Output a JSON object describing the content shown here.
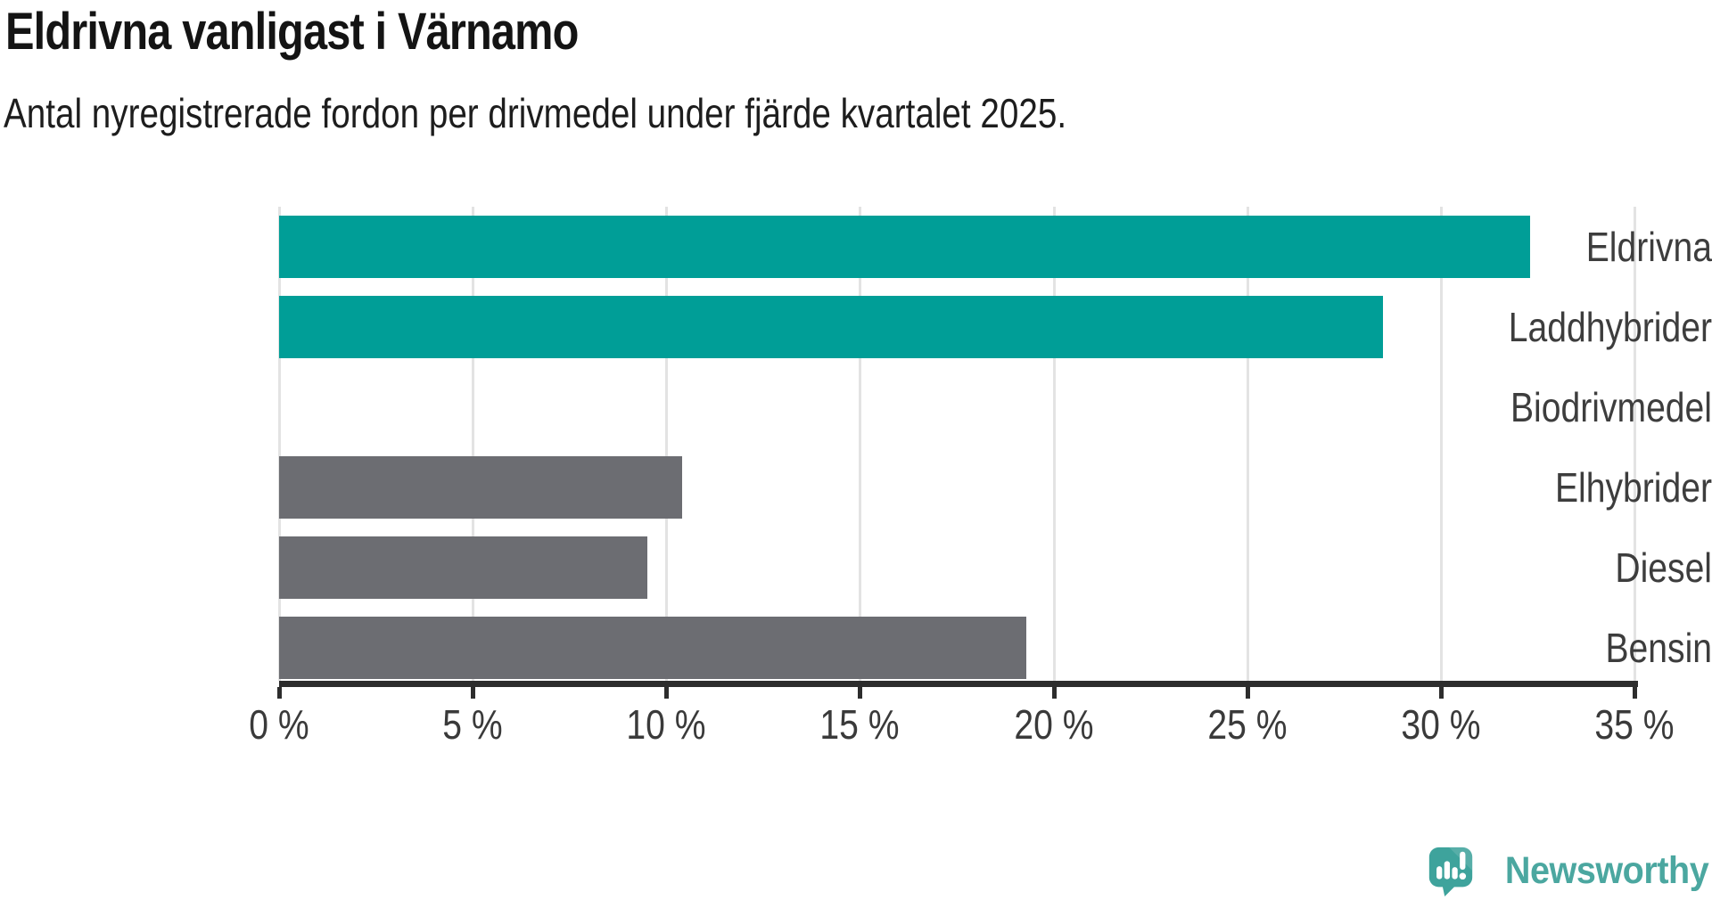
{
  "title": "Eldrivna vanligast i Värnamo",
  "subtitle": "Antal nyregistrerade fordon per drivmedel under fjärde kvartalet 2025.",
  "chart_data": {
    "type": "bar",
    "orientation": "horizontal",
    "title": "Eldrivna vanligast i Värnamo",
    "subtitle": "Antal nyregistrerade fordon per drivmedel under fjärde kvartalet 2025.",
    "categories": [
      "Eldrivna",
      "Laddhybrider",
      "Biodrivmedel",
      "Elhybrider",
      "Diesel",
      "Bensin"
    ],
    "values": [
      32.3,
      28.5,
      0,
      10.4,
      9.5,
      19.3
    ],
    "unit": "%",
    "bar_colors": [
      "#009E97",
      "#009E97",
      "#6C6D72",
      "#6C6D72",
      "#6C6D72",
      "#6C6D72"
    ],
    "accent_color": "#009E97",
    "muted_color": "#6C6D72",
    "xlim": [
      0,
      35
    ],
    "xticks": [
      {
        "value": 0,
        "label": "0 %"
      },
      {
        "value": 5,
        "label": "5 %"
      },
      {
        "value": 10,
        "label": "10 %"
      },
      {
        "value": 15,
        "label": "15 %"
      },
      {
        "value": 20,
        "label": "20 %"
      },
      {
        "value": 25,
        "label": "25 %"
      },
      {
        "value": 30,
        "label": "30 %"
      },
      {
        "value": 35,
        "label": "35 %"
      }
    ],
    "grid": true,
    "gridline_color": "#e3e3e3",
    "axis_color": "#2d2d2d",
    "legend": "none"
  },
  "logo": {
    "text": "Newsworthy",
    "icon": "newsworthy-bubble-barchart-icon",
    "text_color": "#4BA7A0",
    "icon_color": "#3EA39C"
  }
}
